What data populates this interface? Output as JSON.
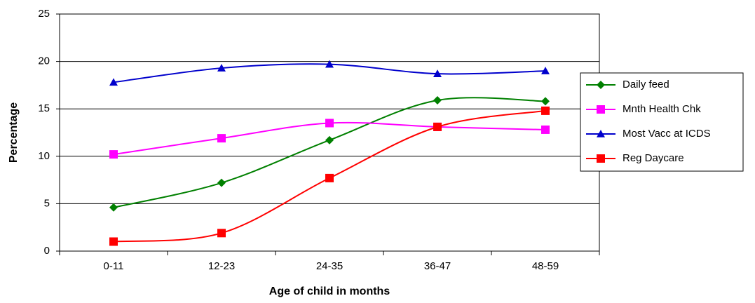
{
  "chart_data": {
    "type": "line",
    "x_label": "Age of child in months",
    "y_label": "Percentage",
    "categories": [
      "0-11",
      "12-23",
      "24-35",
      "36-47",
      "48-59"
    ],
    "series": [
      {
        "name": "Daily feed",
        "color": "#008000",
        "marker": "diamond",
        "values": [
          4.6,
          7.2,
          11.7,
          15.9,
          15.8
        ]
      },
      {
        "name": "Mnth Health Chk",
        "color": "#ff00ff",
        "marker": "square",
        "values": [
          10.2,
          11.9,
          13.5,
          13.1,
          12.8
        ]
      },
      {
        "name": "Most Vacc at ICDS",
        "color": "#0000cc",
        "marker": "triangle",
        "values": [
          17.8,
          19.3,
          19.7,
          18.7,
          19.0
        ]
      },
      {
        "name": "Reg Daycare",
        "color": "#ff0000",
        "marker": "square",
        "values": [
          1.0,
          1.9,
          7.7,
          13.1,
          14.8
        ]
      }
    ],
    "ylim": [
      0,
      25
    ],
    "yticks": [
      0,
      5,
      10,
      15,
      20,
      25
    ],
    "grid": true,
    "smooth": true,
    "legend": "right"
  }
}
